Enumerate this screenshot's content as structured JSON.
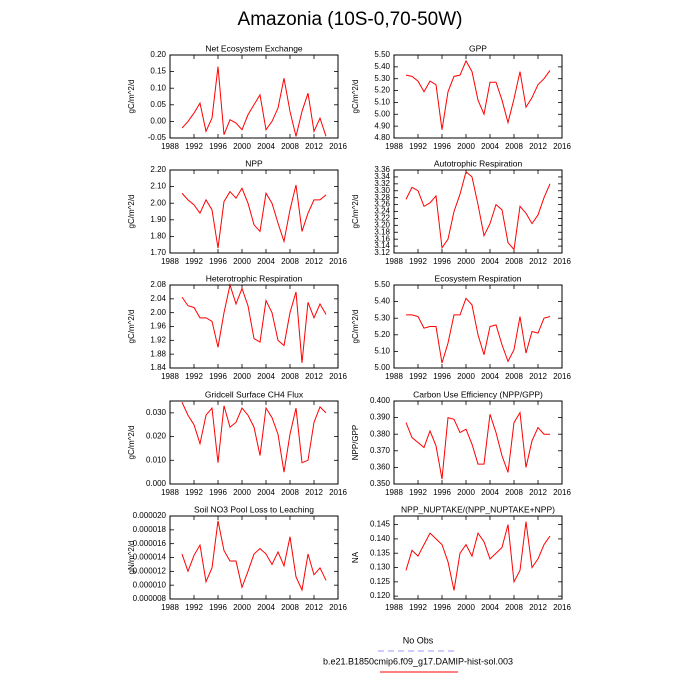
{
  "title": "Amazonia (10S-0,70-50W)",
  "legend": [
    {
      "name": "No Obs",
      "color": "#9999ff",
      "dashed": true
    },
    {
      "name": "b.e21.B1850cmip6.f09_g17.DAMIP-hist-sol.003",
      "color": "#ff0000",
      "dashed": false
    }
  ],
  "chart_data": [
    {
      "type": "line",
      "title": "Net Ecosystem Exchange",
      "y_label": "gC/m^2/d",
      "color": "#ff0000",
      "x": [
        1990,
        1991,
        1992,
        1993,
        1994,
        1995,
        1996,
        1997,
        1998,
        1999,
        2000,
        2001,
        2002,
        2003,
        2004,
        2005,
        2006,
        2007,
        2008,
        2009,
        2010,
        2011,
        2012,
        2013,
        2014
      ],
      "values": [
        -0.02,
        0.0,
        0.025,
        0.055,
        -0.03,
        0.01,
        0.165,
        -0.04,
        0.005,
        -0.005,
        -0.025,
        0.02,
        0.05,
        0.08,
        -0.025,
        0.0,
        0.04,
        0.13,
        0.03,
        -0.045,
        0.03,
        0.085,
        -0.03,
        0.01,
        -0.045
      ],
      "xlim": [
        1988,
        2016
      ],
      "xticks": [
        1988,
        1992,
        1996,
        2000,
        2004,
        2008,
        2012,
        2016
      ],
      "ylim": [
        -0.05,
        0.2
      ],
      "yticks": [
        -0.05,
        {
          "value": 0,
          "label": "0.00"
        },
        0.05,
        {
          "value": 0.1,
          "label": "0.10"
        },
        0.15,
        {
          "value": 0.2,
          "label": "0.20"
        }
      ]
    },
    {
      "type": "line",
      "title": "GPP",
      "y_label": "gC/m^2/d",
      "color": "#ff0000",
      "x": [
        1990,
        1991,
        1992,
        1993,
        1994,
        1995,
        1996,
        1997,
        1998,
        1999,
        2000,
        2001,
        2002,
        2003,
        2004,
        2005,
        2006,
        2007,
        2008,
        2009,
        2010,
        2011,
        2012,
        2013,
        2014
      ],
      "values": [
        5.33,
        5.32,
        5.28,
        5.19,
        5.28,
        5.25,
        4.87,
        5.19,
        5.32,
        5.33,
        5.45,
        5.36,
        5.12,
        5.0,
        5.27,
        5.27,
        5.12,
        4.93,
        5.13,
        5.36,
        5.06,
        5.14,
        5.25,
        5.3,
        5.37
      ],
      "xlim": [
        1988,
        2016
      ],
      "xticks": [
        1988,
        1992,
        1996,
        2000,
        2004,
        2008,
        2012,
        2016
      ],
      "ylim": [
        4.8,
        5.5
      ],
      "yticks": [
        {
          "value": 4.8,
          "label": "4.80"
        },
        {
          "value": 4.9,
          "label": "4.90"
        },
        {
          "value": 5,
          "label": "5.00"
        },
        {
          "value": 5.1,
          "label": "5.10"
        },
        {
          "value": 5.2,
          "label": "5.20"
        },
        {
          "value": 5.3,
          "label": "5.30"
        },
        {
          "value": 5.4,
          "label": "5.40"
        },
        {
          "value": 5.5,
          "label": "5.50"
        }
      ]
    },
    {
      "type": "line",
      "title": "NPP",
      "y_label": "gC/m^2/d",
      "color": "#ff0000",
      "x": [
        1990,
        1991,
        1992,
        1993,
        1994,
        1995,
        1996,
        1997,
        1998,
        1999,
        2000,
        2001,
        2002,
        2003,
        2004,
        2005,
        2006,
        2007,
        2008,
        2009,
        2010,
        2011,
        2012,
        2013,
        2014
      ],
      "values": [
        2.06,
        2.02,
        1.99,
        1.94,
        2.02,
        1.96,
        1.73,
        2.01,
        2.07,
        2.03,
        2.09,
        2.0,
        1.87,
        1.83,
        2.06,
        2.0,
        1.88,
        1.77,
        1.96,
        2.11,
        1.83,
        1.94,
        2.02,
        2.02,
        2.05
      ],
      "xlim": [
        1988,
        2016
      ],
      "xticks": [
        1988,
        1992,
        1996,
        2000,
        2004,
        2008,
        2012,
        2016
      ],
      "ylim": [
        1.7,
        2.2
      ],
      "yticks": [
        {
          "value": 1.7,
          "label": "1.70"
        },
        {
          "value": 1.8,
          "label": "1.80"
        },
        {
          "value": 1.9,
          "label": "1.90"
        },
        {
          "value": 2,
          "label": "2.00"
        },
        {
          "value": 2.1,
          "label": "2.10"
        },
        {
          "value": 2.2,
          "label": "2.20"
        }
      ]
    },
    {
      "type": "line",
      "title": "Autotrophic Respiration",
      "y_label": "gC/m^2/d",
      "color": "#ff0000",
      "x": [
        1990,
        1991,
        1992,
        1993,
        1994,
        1995,
        1996,
        1997,
        1998,
        1999,
        2000,
        2001,
        2002,
        2003,
        2004,
        2005,
        2006,
        2007,
        2008,
        2009,
        2010,
        2011,
        2012,
        2013,
        2014
      ],
      "values": [
        3.275,
        3.31,
        3.3,
        3.255,
        3.265,
        3.285,
        3.135,
        3.16,
        3.24,
        3.29,
        3.355,
        3.34,
        3.26,
        3.17,
        3.205,
        3.26,
        3.245,
        3.15,
        3.13,
        3.255,
        3.235,
        3.205,
        3.23,
        3.28,
        3.32
      ],
      "xlim": [
        1988,
        2016
      ],
      "xticks": [
        1988,
        1992,
        1996,
        2000,
        2004,
        2008,
        2012,
        2016
      ],
      "ylim": [
        3.12,
        3.36
      ],
      "yticks": [
        3.12,
        3.14,
        3.16,
        3.18,
        {
          "value": 3.2,
          "label": "3.20"
        },
        3.22,
        3.24,
        3.26,
        3.28,
        {
          "value": 3.3,
          "label": "3.30"
        },
        3.32,
        3.34,
        3.36
      ]
    },
    {
      "type": "line",
      "title": "Heterotrophic Respiration",
      "y_label": "gC/m^2/d",
      "color": "#ff0000",
      "x": [
        1990,
        1991,
        1992,
        1993,
        1994,
        1995,
        1996,
        1997,
        1998,
        1999,
        2000,
        2001,
        2002,
        2003,
        2004,
        2005,
        2006,
        2007,
        2008,
        2009,
        2010,
        2011,
        2012,
        2013,
        2014
      ],
      "values": [
        2.045,
        2.02,
        2.015,
        1.985,
        1.985,
        1.975,
        1.9,
        2.0,
        2.08,
        2.025,
        2.07,
        2.02,
        1.925,
        1.915,
        2.035,
        2.0,
        1.92,
        1.905,
        2.0,
        2.06,
        1.855,
        2.03,
        1.985,
        2.025,
        1.995
      ],
      "xlim": [
        1988,
        2016
      ],
      "xticks": [
        1988,
        1992,
        1996,
        2000,
        2004,
        2008,
        2012,
        2016
      ],
      "ylim": [
        1.84,
        2.08
      ],
      "yticks": [
        1.84,
        1.88,
        1.92,
        1.96,
        {
          "value": 2,
          "label": "2.00"
        },
        2.04,
        2.08
      ]
    },
    {
      "type": "line",
      "title": "Ecosystem Respiration",
      "y_label": "gC/m^2/d",
      "color": "#ff0000",
      "x": [
        1990,
        1991,
        1992,
        1993,
        1994,
        1995,
        1996,
        1997,
        1998,
        1999,
        2000,
        2001,
        2002,
        2003,
        2004,
        2005,
        2006,
        2007,
        2008,
        2009,
        2010,
        2011,
        2012,
        2013,
        2014
      ],
      "values": [
        5.32,
        5.32,
        5.31,
        5.24,
        5.25,
        5.25,
        5.03,
        5.15,
        5.32,
        5.32,
        5.42,
        5.38,
        5.2,
        5.08,
        5.25,
        5.26,
        5.14,
        5.04,
        5.11,
        5.31,
        5.09,
        5.22,
        5.21,
        5.3,
        5.31
      ],
      "xlim": [
        1988,
        2016
      ],
      "xticks": [
        1988,
        1992,
        1996,
        2000,
        2004,
        2008,
        2012,
        2016
      ],
      "ylim": [
        5.0,
        5.5
      ],
      "yticks": [
        {
          "value": 5,
          "label": "5.00"
        },
        {
          "value": 5.1,
          "label": "5.10"
        },
        {
          "value": 5.2,
          "label": "5.20"
        },
        {
          "value": 5.3,
          "label": "5.30"
        },
        {
          "value": 5.4,
          "label": "5.40"
        },
        {
          "value": 5.5,
          "label": "5.50"
        }
      ]
    },
    {
      "type": "line",
      "title": "Gridcell Surface CH4 Flux",
      "y_label": "gC/m^2/d",
      "color": "#ff0000",
      "x": [
        1990,
        1991,
        1992,
        1993,
        1994,
        1995,
        1996,
        1997,
        1998,
        1999,
        2000,
        2001,
        2002,
        2003,
        2004,
        2005,
        2006,
        2007,
        2008,
        2009,
        2010,
        2011,
        2012,
        2013,
        2014
      ],
      "values": [
        0.0345,
        0.029,
        0.025,
        0.017,
        0.029,
        0.032,
        0.009,
        0.033,
        0.024,
        0.026,
        0.032,
        0.029,
        0.024,
        0.012,
        0.032,
        0.028,
        0.021,
        0.005,
        0.021,
        0.032,
        0.009,
        0.01,
        0.026,
        0.0325,
        0.03
      ],
      "xlim": [
        1988,
        2016
      ],
      "xticks": [
        1988,
        1992,
        1996,
        2000,
        2004,
        2008,
        2012,
        2016
      ],
      "ylim": [
        0,
        0.035
      ],
      "yticks": [
        {
          "value": 0,
          "label": "0.000"
        },
        {
          "value": 0.01,
          "label": "0.010"
        },
        {
          "value": 0.02,
          "label": "0.020"
        },
        {
          "value": 0.03,
          "label": "0.030"
        }
      ]
    },
    {
      "type": "line",
      "title": "Carbon Use Efficiency (NPP/GPP)",
      "y_label": "NPP/GPP",
      "color": "#ff0000",
      "x": [
        1990,
        1991,
        1992,
        1993,
        1994,
        1995,
        1996,
        1997,
        1998,
        1999,
        2000,
        2001,
        2002,
        2003,
        2004,
        2005,
        2006,
        2007,
        2008,
        2009,
        2010,
        2011,
        2012,
        2013,
        2014
      ],
      "values": [
        0.387,
        0.378,
        0.375,
        0.372,
        0.382,
        0.373,
        0.353,
        0.39,
        0.389,
        0.381,
        0.383,
        0.374,
        0.362,
        0.362,
        0.392,
        0.381,
        0.367,
        0.357,
        0.387,
        0.393,
        0.36,
        0.376,
        0.384,
        0.38,
        0.38
      ],
      "xlim": [
        1988,
        2016
      ],
      "xticks": [
        1988,
        1992,
        1996,
        2000,
        2004,
        2008,
        2012,
        2016
      ],
      "ylim": [
        0.35,
        0.4
      ],
      "yticks": [
        {
          "value": 0.35,
          "label": "0.350"
        },
        {
          "value": 0.36,
          "label": "0.360"
        },
        {
          "value": 0.37,
          "label": "0.370"
        },
        {
          "value": 0.38,
          "label": "0.380"
        },
        {
          "value": 0.39,
          "label": "0.390"
        },
        {
          "value": 0.4,
          "label": "0.400"
        }
      ]
    },
    {
      "type": "line",
      "title": "Soil NO3 Pool Loss to Leaching",
      "y_label": "gN/m^2/d",
      "color": "#ff0000",
      "x": [
        1990,
        1991,
        1992,
        1993,
        1994,
        1995,
        1996,
        1997,
        1998,
        1999,
        2000,
        2001,
        2002,
        2003,
        2004,
        2005,
        2006,
        2007,
        2008,
        2009,
        2010,
        2011,
        2012,
        2013,
        2014
      ],
      "values": [
        1.45e-05,
        1.2e-05,
        1.43e-05,
        1.58e-05,
        1.05e-05,
        1.25e-05,
        1.93e-05,
        1.5e-05,
        1.35e-05,
        1.35e-05,
        9.7e-06,
        1.2e-05,
        1.45e-05,
        1.53e-05,
        1.45e-05,
        1.3e-05,
        1.48e-05,
        1.28e-05,
        1.7e-05,
        1.12e-05,
        9.3e-06,
        1.45e-05,
        1.15e-05,
        1.25e-05,
        1.07e-05
      ],
      "xlim": [
        1988,
        2016
      ],
      "xticks": [
        1988,
        1992,
        1996,
        2000,
        2004,
        2008,
        2012,
        2016
      ],
      "ylim": [
        8e-06,
        2e-05
      ],
      "yticks": [
        8e-06,
        {
          "value": 1e-05,
          "label": "0.000010"
        },
        1.2e-05,
        1.4e-05,
        1.6e-05,
        1.8e-05,
        {
          "value": 2e-05,
          "label": "0.000020"
        }
      ]
    },
    {
      "type": "line",
      "title": "NPP_NUPTAKE/(NPP_NUPTAKE+NPP)",
      "y_label": "NA",
      "color": "#ff0000",
      "x": [
        1990,
        1991,
        1992,
        1993,
        1994,
        1995,
        1996,
        1997,
        1998,
        1999,
        2000,
        2001,
        2002,
        2003,
        2004,
        2005,
        2006,
        2007,
        2008,
        2009,
        2010,
        2011,
        2012,
        2013,
        2014
      ],
      "values": [
        0.129,
        0.136,
        0.134,
        0.138,
        0.142,
        0.14,
        0.138,
        0.132,
        0.122,
        0.135,
        0.138,
        0.134,
        0.142,
        0.139,
        0.133,
        0.135,
        0.137,
        0.145,
        0.125,
        0.129,
        0.146,
        0.13,
        0.133,
        0.138,
        0.141
      ],
      "xlim": [
        1988,
        2016
      ],
      "xticks": [
        1988,
        1992,
        1996,
        2000,
        2004,
        2008,
        2012,
        2016
      ],
      "ylim": [
        0.119,
        0.148
      ],
      "yticks": [
        {
          "value": 0.12,
          "label": "0.120"
        },
        0.125,
        {
          "value": 0.13,
          "label": "0.130"
        },
        0.135,
        {
          "value": 0.14,
          "label": "0.140"
        },
        0.145
      ]
    }
  ]
}
